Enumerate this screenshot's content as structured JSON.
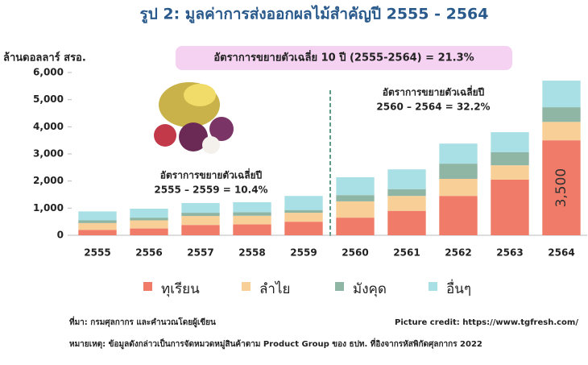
{
  "chart_data": {
    "type": "stacked_bar",
    "title": "รูป 2: มูลค่าการส่งออกผลไม้สำคัญปี 2555 - 2564",
    "y_label": "ล้านดอลลาร์ สรอ.",
    "annotations": [
      "อัตราการขยายตัวเฉลี่ย 10 ปี (2555-2564) =  21.3%",
      "อัตราการขยายตัวเฉลี่ยปี",
      "2560 – 2564 =  32.2%",
      "อัตราการขยายตัวเฉลี่ยปี",
      "2555 – 2559 =  10.4%"
    ],
    "source": "ที่มา: กรมศุลกากร และคำนวณโดยผู้เขียน",
    "credit": "Picture credit: https://www.tgfresh.com/",
    "note": "หมายเหตุ: ข้อมูลดังกล่าวเป็นการจัดหมวดหมู่สินค้าตาม Product Group ของ ธปท. ที่อิงจากรหัสพิกัดศุลกากร 2022",
    "categories": [
      "2555",
      "2556",
      "2557",
      "2558",
      "2559",
      "2560",
      "2561",
      "2562",
      "2563",
      "2564"
    ],
    "series": [
      {
        "name": "ทุเรียน",
        "color": "#f07b68",
        "values": [
          200,
          250,
          380,
          400,
          500,
          650,
          900,
          1450,
          2050,
          3500
        ],
        "value_labels": [
          null,
          null,
          null,
          null,
          null,
          null,
          null,
          null,
          null,
          "3,500"
        ]
      },
      {
        "name": "ลำไย",
        "color": "#f8cf96",
        "values": [
          250,
          300,
          330,
          320,
          330,
          600,
          550,
          630,
          530,
          680
        ]
      },
      {
        "name": "มังคุด",
        "color": "#8fb5a5",
        "values": [
          100,
          100,
          120,
          130,
          100,
          230,
          250,
          560,
          480,
          540
        ]
      },
      {
        "name": "อื่นๆ",
        "color": "#a8e0e6",
        "values": [
          330,
          330,
          360,
          370,
          520,
          660,
          730,
          740,
          740,
          980
        ]
      }
    ],
    "ylim": [
      0,
      6000
    ],
    "yticks": [
      0,
      {
        "value": 1000,
        "label": "1,000"
      },
      {
        "value": 2000,
        "label": "2,000"
      },
      {
        "value": 3000,
        "label": "3,000"
      },
      {
        "value": 4000,
        "label": "4,000"
      },
      {
        "value": 5000,
        "label": "5,000"
      },
      {
        "value": 6000,
        "label": "6,000"
      }
    ],
    "grid": false
  }
}
